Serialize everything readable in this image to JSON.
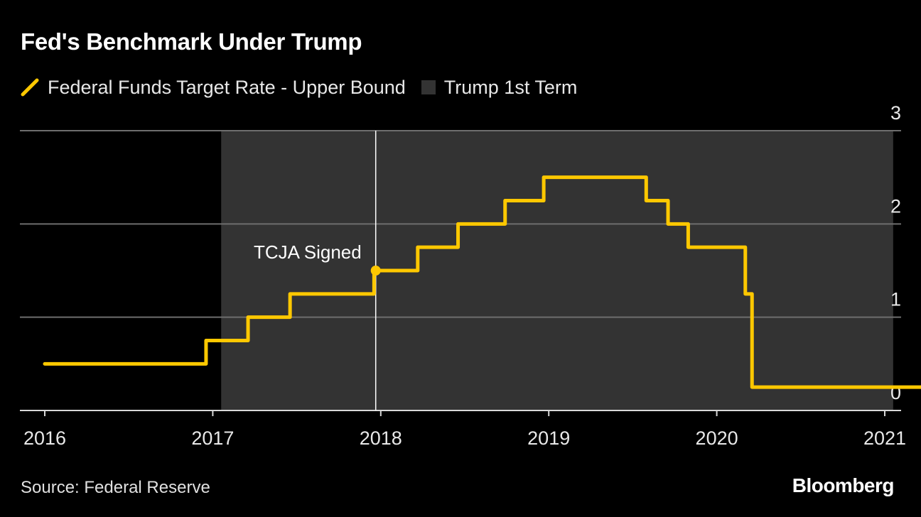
{
  "title": "Fed's Benchmark Under Trump",
  "legend": {
    "line_label": "Federal Funds Target Rate - Upper Bound",
    "shade_label": "Trump 1st Term"
  },
  "source": "Source: Federal Reserve",
  "brand": "Bloomberg",
  "colors": {
    "background": "#000000",
    "line": "#ffc800",
    "shade": "#333333",
    "grid": "#6e6e6e",
    "text": "#ffffff"
  },
  "chart_data": {
    "type": "line",
    "step": true,
    "xlim": [
      2016.0,
      2021.4
    ],
    "ylim": [
      0,
      3
    ],
    "x_ticks": [
      2016,
      2017,
      2018,
      2019,
      2020,
      2021
    ],
    "x_tick_labels": [
      "2016",
      "2017",
      "2018",
      "2019",
      "2020",
      "2021"
    ],
    "y_ticks": [
      0,
      1,
      2,
      3
    ],
    "y_tick_labels": [
      "0",
      "1",
      "2",
      "3"
    ],
    "y_axis_side": "right",
    "grid": "horizontal",
    "series": [
      {
        "name": "Federal Funds Target Rate - Upper Bound",
        "points": [
          [
            2016.0,
            0.5
          ],
          [
            2016.96,
            0.75
          ],
          [
            2017.21,
            1.0
          ],
          [
            2017.46,
            1.25
          ],
          [
            2017.96,
            1.5
          ],
          [
            2018.22,
            1.75
          ],
          [
            2018.46,
            2.0
          ],
          [
            2018.74,
            2.25
          ],
          [
            2018.97,
            2.5
          ],
          [
            2019.58,
            2.25
          ],
          [
            2019.71,
            2.0
          ],
          [
            2019.83,
            1.75
          ],
          [
            2020.17,
            1.25
          ],
          [
            2020.21,
            0.25
          ],
          [
            2021.24,
            0.25
          ]
        ]
      }
    ],
    "shaded_periods": [
      {
        "name": "Trump 1st Term",
        "start": 2017.05,
        "end": 2021.05
      }
    ],
    "annotations": [
      {
        "label": "TCJA Signed",
        "x": 2017.97,
        "y": 1.5
      }
    ]
  }
}
